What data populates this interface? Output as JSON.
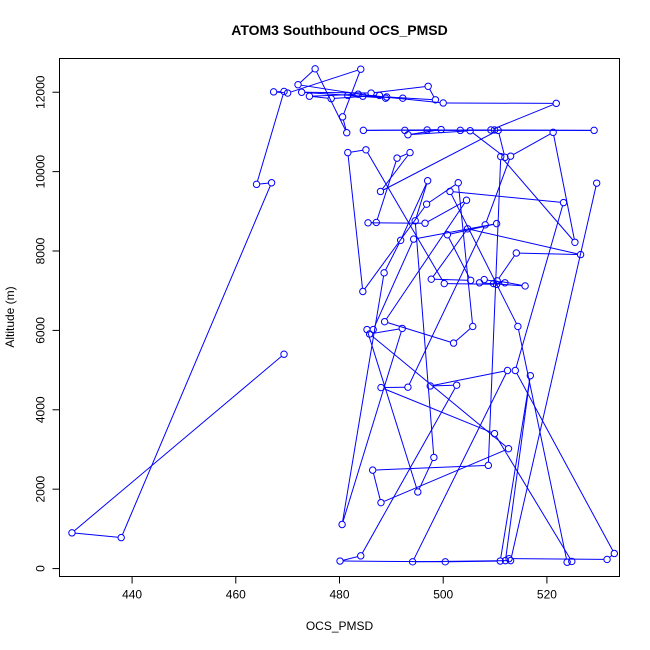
{
  "chart_data": {
    "type": "line",
    "title": "ATOM3 Southbound OCS_PMSD",
    "xlabel": "OCS_PMSD",
    "ylabel": "Altitude (m)",
    "xlim": [
      426,
      534
    ],
    "ylim": [
      -200,
      12850
    ],
    "xticks": [
      440,
      460,
      480,
      500,
      520
    ],
    "yticks": [
      0,
      2000,
      4000,
      6000,
      8000,
      10000,
      12000
    ],
    "grid": false,
    "color": "#0000ff",
    "series": [
      {
        "markers": "open-circle",
        "x": [
          469.3,
          428.4,
          437.9,
          466.9,
          464.0,
          469.3,
          467.3,
          470.0,
          484.1,
          480.6,
          481.4,
          475.3,
          472.0,
          488.9,
          481.6,
          492.2,
          489.1,
          498.5,
          497.1,
          486.1,
          472.7,
          484.5,
          487.7,
          478.4,
          474.2,
          483.6,
          500.0,
          521.8,
          509.2,
          484.6,
          496.9,
          503.3,
          509.9,
          529.1,
          492.6,
          499.6,
          493.2,
          505.2,
          511.9,
          510.6,
          487.9,
          493.6,
          491.1,
          487.1,
          485.5,
          496.5,
          504.5,
          488.7,
          502.0,
          505.7,
          502.9,
          496.8,
          484.5,
          481.6,
          485.1,
          500.2,
          510.3,
          509.7,
          511.9,
          507.9,
          507.0,
          515.8,
          510.4,
          514.1,
          526.5,
          504.7,
          497.7,
          505.3,
          500.8,
          510.3,
          494.3,
          486.5,
          485.3,
          495.1,
          498.2,
          494.6,
          497.0,
          491.8,
          488.6,
          480.5,
          492.1,
          485.8,
          512.6,
          488.0,
          486.4,
          508.7,
          511.1,
          525.4,
          521.2,
          513.0,
          508.1,
          493.2,
          488.0,
          509.9,
          524.8,
          523.9,
          514.4,
          501.3,
          523.2,
          513.9,
          533.0,
          531.6,
          512.7,
          512.0,
          516.8,
          511.0,
          500.4,
          480.1,
          484.1,
          502.6,
          497.5,
          512.4,
          494.1,
          513.0,
          529.6
        ],
        "y": [
          5400,
          900,
          780,
          9720,
          9680,
          12020,
          12010,
          11980,
          12580,
          11380,
          10980,
          12590,
          12190,
          11850,
          11920,
          11850,
          11880,
          11810,
          12150,
          11980,
          12000,
          11900,
          11920,
          11840,
          11900,
          11950,
          11730,
          11720,
          11050,
          11040,
          11050,
          11040,
          11050,
          11040,
          11040,
          11060,
          10930,
          11030,
          10360,
          11040,
          9500,
          10480,
          10340,
          8720,
          8710,
          8700,
          9280,
          6220,
          5680,
          6100,
          9720,
          9180,
          6980,
          10480,
          10550,
          7180,
          7160,
          7180,
          7200,
          7280,
          7200,
          7120,
          7250,
          7950,
          7910,
          8560,
          7290,
          7260,
          8410,
          8690,
          8300,
          6020,
          6020,
          1930,
          2800,
          8760,
          9770,
          8270,
          7450,
          1110,
          6050,
          5910,
          3020,
          1660,
          2480,
          2600,
          10380,
          8220,
          10990,
          10390,
          8660,
          4570,
          4560,
          3400,
          180,
          160,
          6100,
          9500,
          9220,
          4990,
          380,
          230,
          250,
          200,
          4860,
          190,
          170,
          190,
          320,
          4620,
          4600,
          4990,
          170,
          200,
          9710
        ]
      }
    ]
  }
}
